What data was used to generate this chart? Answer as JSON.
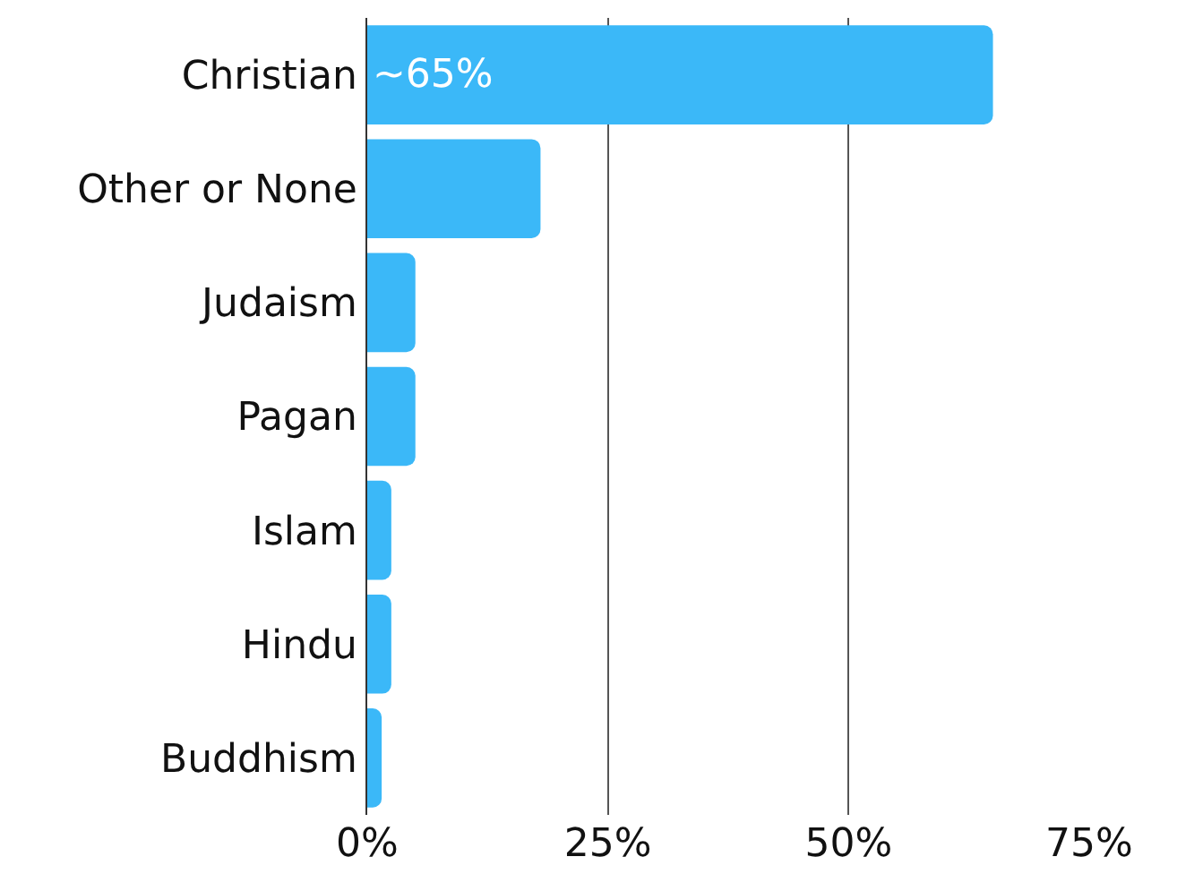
{
  "chart_data": {
    "type": "bar",
    "orientation": "horizontal",
    "categories": [
      "Christian",
      "Other or None",
      "Judaism",
      "Pagan",
      "Islam",
      "Hindu",
      "Buddhism"
    ],
    "values": [
      65,
      18,
      5,
      5,
      2.5,
      2.5,
      1.5
    ],
    "value_labels": [
      "~65%",
      null,
      null,
      null,
      null,
      null,
      null
    ],
    "color": "#3bb8f8",
    "xlim": [
      0,
      75
    ],
    "xticks": [
      {
        "value": 0,
        "label": "0%"
      },
      {
        "value": 25,
        "label": "25%"
      },
      {
        "value": 50,
        "label": "50%"
      },
      {
        "value": 75,
        "label": "75%"
      }
    ],
    "grid": "x"
  }
}
